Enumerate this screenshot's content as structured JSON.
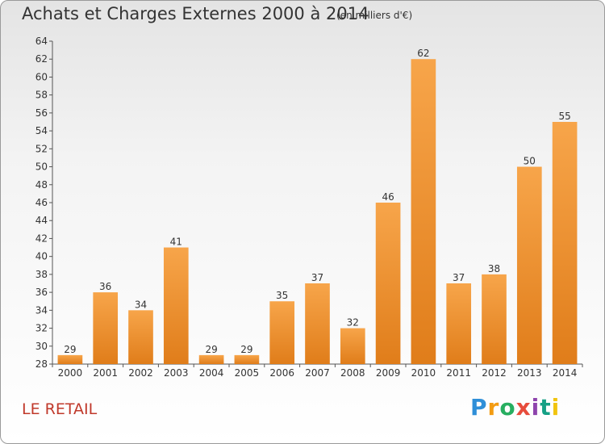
{
  "header": {
    "title": "Achats et Charges Externes 2000 à 2014",
    "subtitle": "(en milliers d'€)"
  },
  "footer": {
    "place": "LE RETAIL",
    "logo_letters": [
      "P",
      "r",
      "o",
      "x",
      "i",
      "t",
      "i"
    ],
    "logo_colors": [
      "#2f8fd8",
      "#f39c12",
      "#27ae60",
      "#e74c3c",
      "#8e44ad",
      "#16a085",
      "#f1c40f"
    ]
  },
  "colors": {
    "bar_light": "#f7a54a",
    "bar_dark": "#e07d1a",
    "axis": "#555555",
    "grid": "#cccccc"
  },
  "chart_data": {
    "type": "bar",
    "title": "Achats et Charges Externes 2000 à 2014",
    "subtitle": "(en milliers d'€)",
    "categories": [
      "2000",
      "2001",
      "2002",
      "2003",
      "2004",
      "2005",
      "2006",
      "2007",
      "2008",
      "2009",
      "2010",
      "2011",
      "2012",
      "2013",
      "2014"
    ],
    "values": [
      29,
      36,
      34,
      41,
      29,
      29,
      35,
      37,
      32,
      46,
      62,
      37,
      38,
      50,
      55
    ],
    "xlabel": "",
    "ylabel": "",
    "ylim": [
      28,
      64
    ],
    "yticks": [
      28,
      30,
      32,
      34,
      36,
      38,
      40,
      42,
      44,
      46,
      48,
      50,
      52,
      54,
      56,
      58,
      60,
      62,
      64
    ],
    "grid": false,
    "data_labels": true
  }
}
